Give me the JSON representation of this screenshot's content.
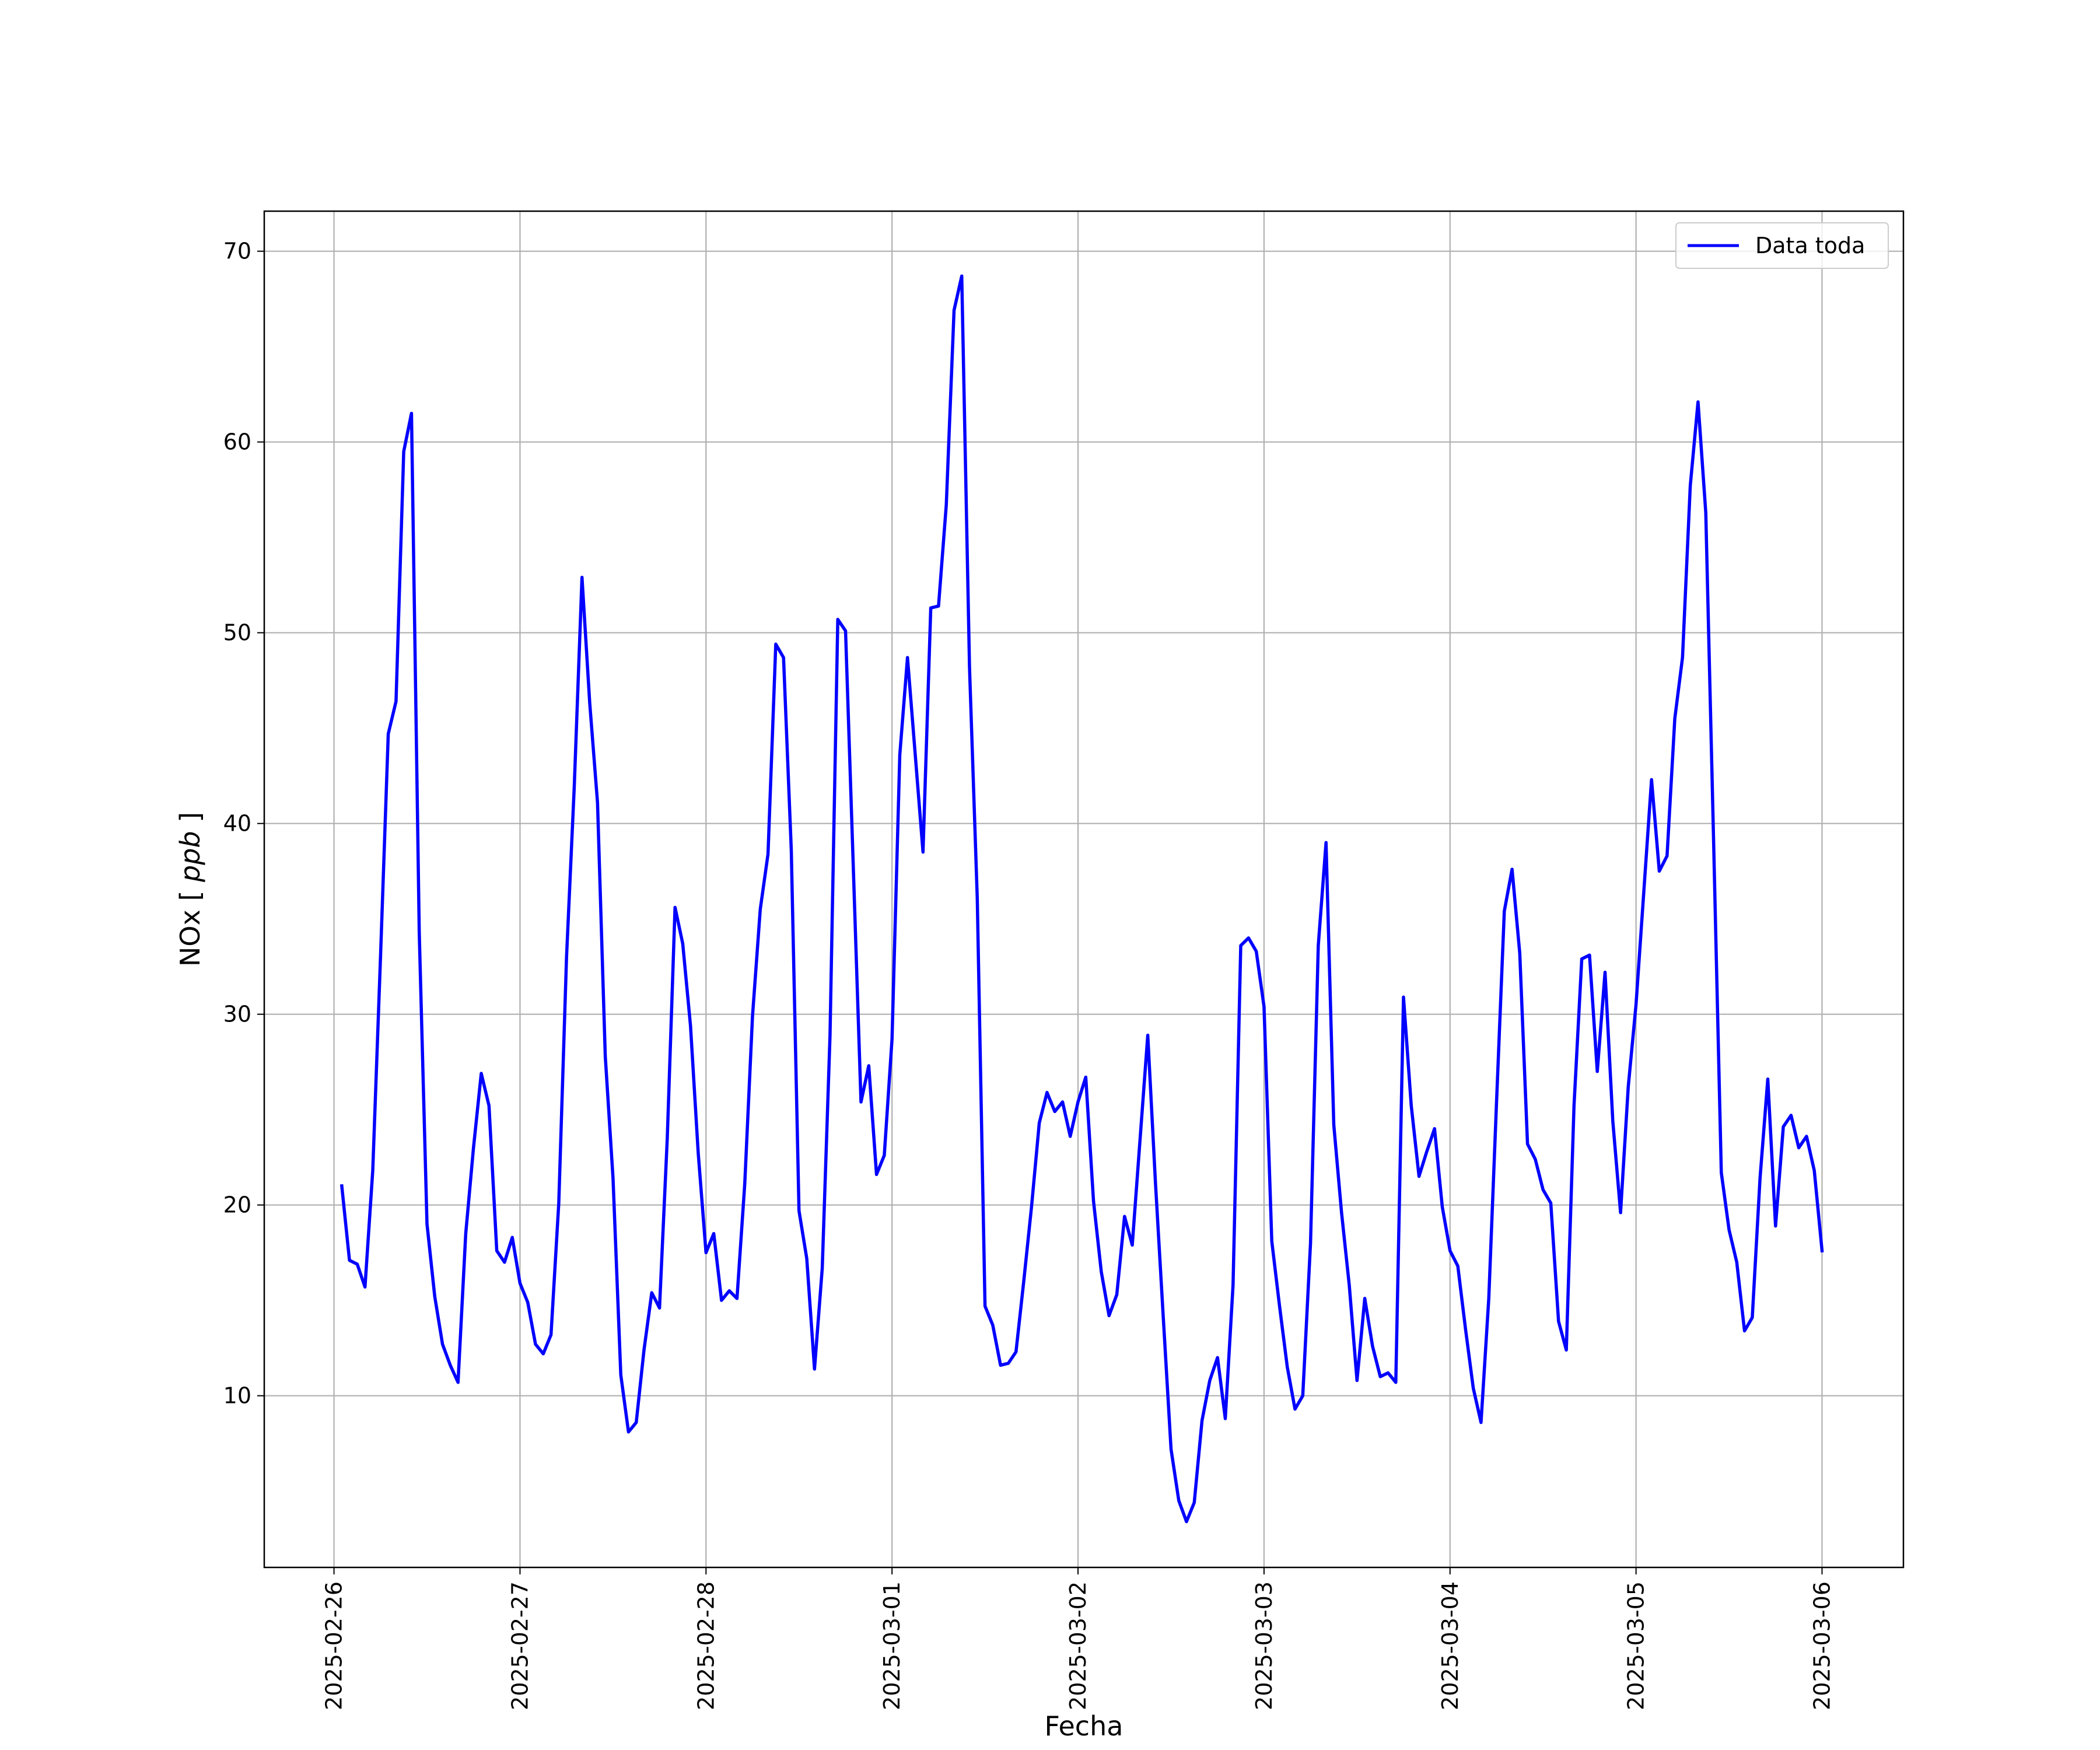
{
  "chart_data": {
    "type": "line",
    "title": "",
    "xlabel": "Fecha",
    "ylabel_text": "NOx",
    "ylabel_unit": "ppb",
    "x_ticks": [
      "2025-02-26",
      "2025-02-27",
      "2025-02-28",
      "2025-03-01",
      "2025-03-02",
      "2025-03-03",
      "2025-03-04",
      "2025-03-05",
      "2025-03-06"
    ],
    "y_ticks": [
      10,
      20,
      30,
      40,
      50,
      60,
      70
    ],
    "xlim": [
      "2025-02-25T15:00",
      "2025-03-06T10:30"
    ],
    "ylim": [
      1.0,
      72.1
    ],
    "grid": true,
    "legend": "top-right",
    "line_color": "#0000ff",
    "series": [
      {
        "name": "Data toda",
        "x": [
          "2025-02-26T01:00",
          "2025-02-26T02:00",
          "2025-02-26T03:00",
          "2025-02-26T04:00",
          "2025-02-26T05:00",
          "2025-02-26T06:00",
          "2025-02-26T07:00",
          "2025-02-26T08:00",
          "2025-02-26T09:00",
          "2025-02-26T10:00",
          "2025-02-26T11:00",
          "2025-02-26T12:00",
          "2025-02-26T13:00",
          "2025-02-26T14:00",
          "2025-02-26T15:00",
          "2025-02-26T16:00",
          "2025-02-26T17:00",
          "2025-02-26T18:00",
          "2025-02-26T19:00",
          "2025-02-26T20:00",
          "2025-02-26T21:00",
          "2025-02-26T22:00",
          "2025-02-26T23:00",
          "2025-02-27T00:00",
          "2025-02-27T01:00",
          "2025-02-27T02:00",
          "2025-02-27T03:00",
          "2025-02-27T04:00",
          "2025-02-27T05:00",
          "2025-02-27T06:00",
          "2025-02-27T07:00",
          "2025-02-27T08:00",
          "2025-02-27T09:00",
          "2025-02-27T10:00",
          "2025-02-27T11:00",
          "2025-02-27T12:00",
          "2025-02-27T13:00",
          "2025-02-27T14:00",
          "2025-02-27T15:00",
          "2025-02-27T16:00",
          "2025-02-27T17:00",
          "2025-02-27T18:00",
          "2025-02-27T19:00",
          "2025-02-27T20:00",
          "2025-02-27T21:00",
          "2025-02-27T22:00",
          "2025-02-27T23:00",
          "2025-02-28T00:00",
          "2025-02-28T01:00",
          "2025-02-28T02:00",
          "2025-02-28T03:00",
          "2025-02-28T04:00",
          "2025-02-28T05:00",
          "2025-02-28T06:00",
          "2025-02-28T07:00",
          "2025-02-28T08:00",
          "2025-02-28T09:00",
          "2025-02-28T10:00",
          "2025-02-28T11:00",
          "2025-02-28T12:00",
          "2025-02-28T13:00",
          "2025-02-28T14:00",
          "2025-02-28T15:00",
          "2025-02-28T16:00",
          "2025-02-28T17:00",
          "2025-02-28T18:00",
          "2025-02-28T19:00",
          "2025-02-28T20:00",
          "2025-02-28T21:00",
          "2025-02-28T22:00",
          "2025-02-28T23:00",
          "2025-03-01T00:00",
          "2025-03-01T01:00",
          "2025-03-01T02:00",
          "2025-03-01T03:00",
          "2025-03-01T04:00",
          "2025-03-01T05:00",
          "2025-03-01T06:00",
          "2025-03-01T07:00",
          "2025-03-01T08:00",
          "2025-03-01T09:00",
          "2025-03-01T10:00",
          "2025-03-01T11:00",
          "2025-03-01T12:00",
          "2025-03-01T13:00",
          "2025-03-01T14:00",
          "2025-03-01T15:00",
          "2025-03-01T16:00",
          "2025-03-01T17:00",
          "2025-03-01T18:00",
          "2025-03-01T19:00",
          "2025-03-01T20:00",
          "2025-03-01T21:00",
          "2025-03-01T22:00",
          "2025-03-01T23:00",
          "2025-03-02T00:00",
          "2025-03-02T01:00",
          "2025-03-02T02:00",
          "2025-03-02T03:00",
          "2025-03-02T04:00",
          "2025-03-02T05:00",
          "2025-03-02T06:00",
          "2025-03-02T07:00",
          "2025-03-02T08:00",
          "2025-03-02T09:00",
          "2025-03-02T10:00",
          "2025-03-02T11:00",
          "2025-03-02T12:00",
          "2025-03-02T13:00",
          "2025-03-02T14:00",
          "2025-03-02T15:00",
          "2025-03-02T16:00",
          "2025-03-02T17:00",
          "2025-03-02T18:00",
          "2025-03-02T19:00",
          "2025-03-02T20:00",
          "2025-03-02T21:00",
          "2025-03-02T22:00",
          "2025-03-02T23:00",
          "2025-03-03T00:00",
          "2025-03-03T01:00",
          "2025-03-03T02:00",
          "2025-03-03T03:00",
          "2025-03-03T04:00",
          "2025-03-03T05:00",
          "2025-03-03T06:00",
          "2025-03-03T07:00",
          "2025-03-03T08:00",
          "2025-03-03T09:00",
          "2025-03-03T10:00",
          "2025-03-03T11:00",
          "2025-03-03T12:00",
          "2025-03-03T13:00",
          "2025-03-03T14:00",
          "2025-03-03T15:00",
          "2025-03-03T16:00",
          "2025-03-03T17:00",
          "2025-03-03T18:00",
          "2025-03-03T19:00",
          "2025-03-03T20:00",
          "2025-03-03T21:00",
          "2025-03-03T22:00",
          "2025-03-03T23:00",
          "2025-03-04T00:00",
          "2025-03-04T01:00",
          "2025-03-04T02:00",
          "2025-03-04T03:00",
          "2025-03-04T04:00",
          "2025-03-04T05:00",
          "2025-03-04T06:00",
          "2025-03-04T07:00",
          "2025-03-04T08:00",
          "2025-03-04T09:00",
          "2025-03-04T10:00",
          "2025-03-04T11:00",
          "2025-03-04T12:00",
          "2025-03-04T13:00",
          "2025-03-04T14:00",
          "2025-03-04T15:00",
          "2025-03-04T16:00",
          "2025-03-04T17:00",
          "2025-03-04T18:00",
          "2025-03-04T19:00",
          "2025-03-04T20:00",
          "2025-03-04T21:00",
          "2025-03-04T22:00",
          "2025-03-04T23:00",
          "2025-03-05T00:00",
          "2025-03-05T01:00",
          "2025-03-05T02:00",
          "2025-03-05T03:00",
          "2025-03-05T04:00",
          "2025-03-05T05:00",
          "2025-03-05T06:00",
          "2025-03-05T07:00",
          "2025-03-05T08:00",
          "2025-03-05T09:00",
          "2025-03-05T10:00",
          "2025-03-05T11:00",
          "2025-03-05T12:00",
          "2025-03-05T13:00",
          "2025-03-05T14:00",
          "2025-03-05T15:00",
          "2025-03-05T16:00",
          "2025-03-05T17:00",
          "2025-03-05T18:00",
          "2025-03-05T19:00",
          "2025-03-05T20:00",
          "2025-03-05T21:00",
          "2025-03-05T22:00",
          "2025-03-05T23:00",
          "2025-03-06T00:00"
        ],
        "values": [
          21.0,
          17.1,
          16.9,
          15.7,
          21.8,
          33.0,
          44.7,
          46.4,
          59.5,
          61.5,
          34.3,
          19.0,
          15.2,
          12.7,
          11.6,
          10.7,
          18.5,
          23.0,
          26.9,
          25.2,
          17.6,
          17.0,
          18.3,
          15.9,
          14.9,
          12.7,
          12.2,
          13.2,
          20.1,
          33.0,
          41.9,
          52.9,
          46.3,
          41.1,
          27.8,
          21.4,
          11.1,
          8.1,
          8.6,
          12.4,
          15.4,
          14.6,
          23.5,
          35.6,
          33.7,
          29.4,
          22.7,
          17.5,
          18.5,
          15.0,
          15.5,
          15.1,
          21.1,
          29.9,
          35.5,
          38.4,
          49.4,
          48.7,
          38.6,
          19.7,
          17.2,
          11.4,
          16.7,
          28.9,
          50.7,
          50.1,
          37.8,
          25.4,
          27.3,
          21.6,
          22.6,
          28.7,
          43.6,
          48.7,
          43.6,
          38.5,
          51.3,
          51.4,
          56.7,
          66.9,
          68.7,
          48.2,
          36.1,
          14.7,
          13.7,
          11.6,
          11.7,
          12.3,
          16.0,
          19.9,
          24.3,
          25.9,
          24.9,
          25.4,
          23.6,
          25.4,
          26.7,
          20.2,
          16.5,
          14.2,
          15.3,
          19.4,
          17.9,
          23.4,
          28.9,
          21.1,
          14.1,
          7.2,
          4.5,
          3.4,
          4.4,
          8.7,
          10.8,
          12.0,
          8.8,
          15.8,
          33.6,
          34.0,
          33.3,
          30.4,
          18.1,
          14.7,
          11.5,
          9.3,
          10.0,
          18.0,
          33.6,
          39.0,
          24.2,
          19.6,
          15.8,
          10.8,
          15.1,
          12.6,
          11.0,
          11.2,
          10.7,
          30.9,
          25.2,
          21.5,
          22.8,
          24.0,
          19.9,
          17.6,
          16.8,
          13.5,
          10.4,
          8.6,
          15.1,
          25.4,
          35.4,
          37.6,
          33.2,
          23.2,
          22.4,
          20.8,
          20.1,
          13.9,
          12.4,
          25.2,
          32.9,
          33.1,
          27.0,
          32.2,
          24.4,
          19.6,
          26.2,
          30.5,
          36.4,
          42.3,
          37.5,
          38.3,
          45.5,
          48.7,
          57.7,
          62.1,
          56.3,
          39.2,
          21.7,
          18.7,
          17.0,
          13.4,
          14.1,
          21.4,
          26.6,
          18.9,
          24.1,
          24.7,
          23.0,
          23.6,
          21.8,
          17.6
        ]
      }
    ]
  }
}
